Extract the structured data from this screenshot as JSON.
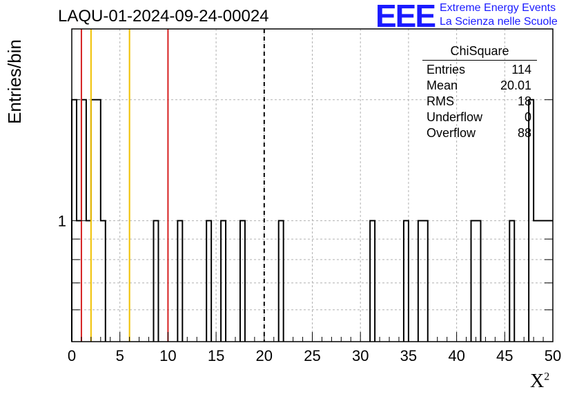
{
  "title": "LAQU-01-2024-09-24-00024",
  "logo": {
    "mark": "EEE",
    "line1": "Extreme Energy Events",
    "line2": "La Scienza nelle Scuole"
  },
  "stats": {
    "title": "ChiSquare",
    "rows": [
      {
        "label": "Entries",
        "value": "114"
      },
      {
        "label": "Mean",
        "value": "20.01"
      },
      {
        "label": "RMS",
        "value": "18"
      },
      {
        "label": "Underflow",
        "value": "0"
      },
      {
        "label": "Overflow",
        "value": "88"
      }
    ]
  },
  "chart_data": {
    "type": "bar",
    "histogram": true,
    "xlabel": "X",
    "xlabel_sup": "2",
    "ylabel": "Entries/bin",
    "xlim": [
      0,
      50
    ],
    "ylim": [
      0.5,
      3
    ],
    "y_scale": "log",
    "bin_width": 0.5,
    "x_ticks": [
      "0",
      "5",
      "10",
      "15",
      "20",
      "25",
      "30",
      "35",
      "40",
      "45",
      "50"
    ],
    "y_tick_labels": [
      {
        "value": 1,
        "label": "1"
      }
    ],
    "grid": true,
    "bins": [
      {
        "lo": 0.0,
        "hi": 0.5,
        "count": 2
      },
      {
        "lo": 0.5,
        "hi": 1.0,
        "count": 1
      },
      {
        "lo": 1.0,
        "hi": 1.5,
        "count": 2
      },
      {
        "lo": 1.5,
        "hi": 2.0,
        "count": 1
      },
      {
        "lo": 2.0,
        "hi": 3.0,
        "count": 2
      },
      {
        "lo": 3.0,
        "hi": 3.5,
        "count": 1
      },
      {
        "lo": 8.5,
        "hi": 9.0,
        "count": 1
      },
      {
        "lo": 11.0,
        "hi": 11.5,
        "count": 1
      },
      {
        "lo": 14.0,
        "hi": 14.5,
        "count": 1
      },
      {
        "lo": 15.5,
        "hi": 16.0,
        "count": 1
      },
      {
        "lo": 17.5,
        "hi": 18.0,
        "count": 1
      },
      {
        "lo": 21.5,
        "hi": 22.0,
        "count": 1
      },
      {
        "lo": 31.0,
        "hi": 31.5,
        "count": 1
      },
      {
        "lo": 34.5,
        "hi": 35.0,
        "count": 1
      },
      {
        "lo": 36.0,
        "hi": 37.0,
        "count": 1
      },
      {
        "lo": 41.5,
        "hi": 42.5,
        "count": 1
      },
      {
        "lo": 45.5,
        "hi": 46.0,
        "count": 1
      },
      {
        "lo": 47.5,
        "hi": 48.0,
        "count": 2
      },
      {
        "lo": 48.0,
        "hi": 50.0,
        "count": 1
      }
    ],
    "vertical_lines": [
      {
        "x": 1,
        "color": "#d62020",
        "style": "solid"
      },
      {
        "x": 2,
        "color": "#f0c000",
        "style": "solid"
      },
      {
        "x": 6,
        "color": "#f0c000",
        "style": "solid"
      },
      {
        "x": 10,
        "color": "#d62020",
        "style": "solid"
      },
      {
        "x": 20,
        "color": "#000000",
        "style": "dashed"
      }
    ]
  }
}
